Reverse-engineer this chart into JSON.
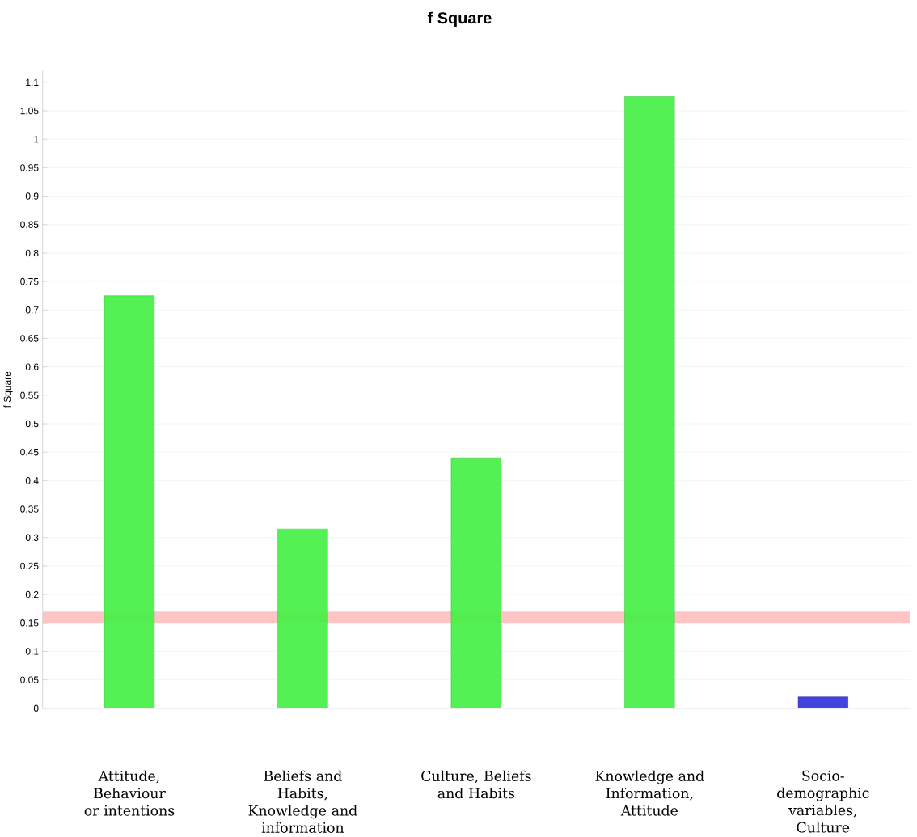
{
  "chart_data": {
    "type": "bar",
    "title": "f Square",
    "ylabel": "f Square",
    "categories": [
      "Attitude, Behaviour or intentions",
      "Beliefs and Habits, Knowledge and information",
      "Culture, Beliefs and Habits",
      "Knowledge and Information, Attitude",
      "Socio-demographic variables, Culture"
    ],
    "values": [
      0.725,
      0.315,
      0.44,
      1.075,
      0.02
    ],
    "colors": [
      "#44f044",
      "#44f044",
      "#44f044",
      "#44f044",
      "#3333dd"
    ],
    "ylim": [
      0,
      1.12
    ],
    "yticks": [
      0,
      0.05,
      0.1,
      0.15,
      0.2,
      0.25,
      0.3,
      0.35,
      0.4,
      0.45,
      0.5,
      0.55,
      0.6,
      0.65,
      0.7,
      0.75,
      0.8,
      0.85,
      0.9,
      0.95,
      1,
      1.05,
      1.1
    ],
    "ref_lines": [
      {
        "axis": "y",
        "value": 0.16,
        "color": "#ffc4c4"
      }
    ],
    "grid": "y"
  }
}
